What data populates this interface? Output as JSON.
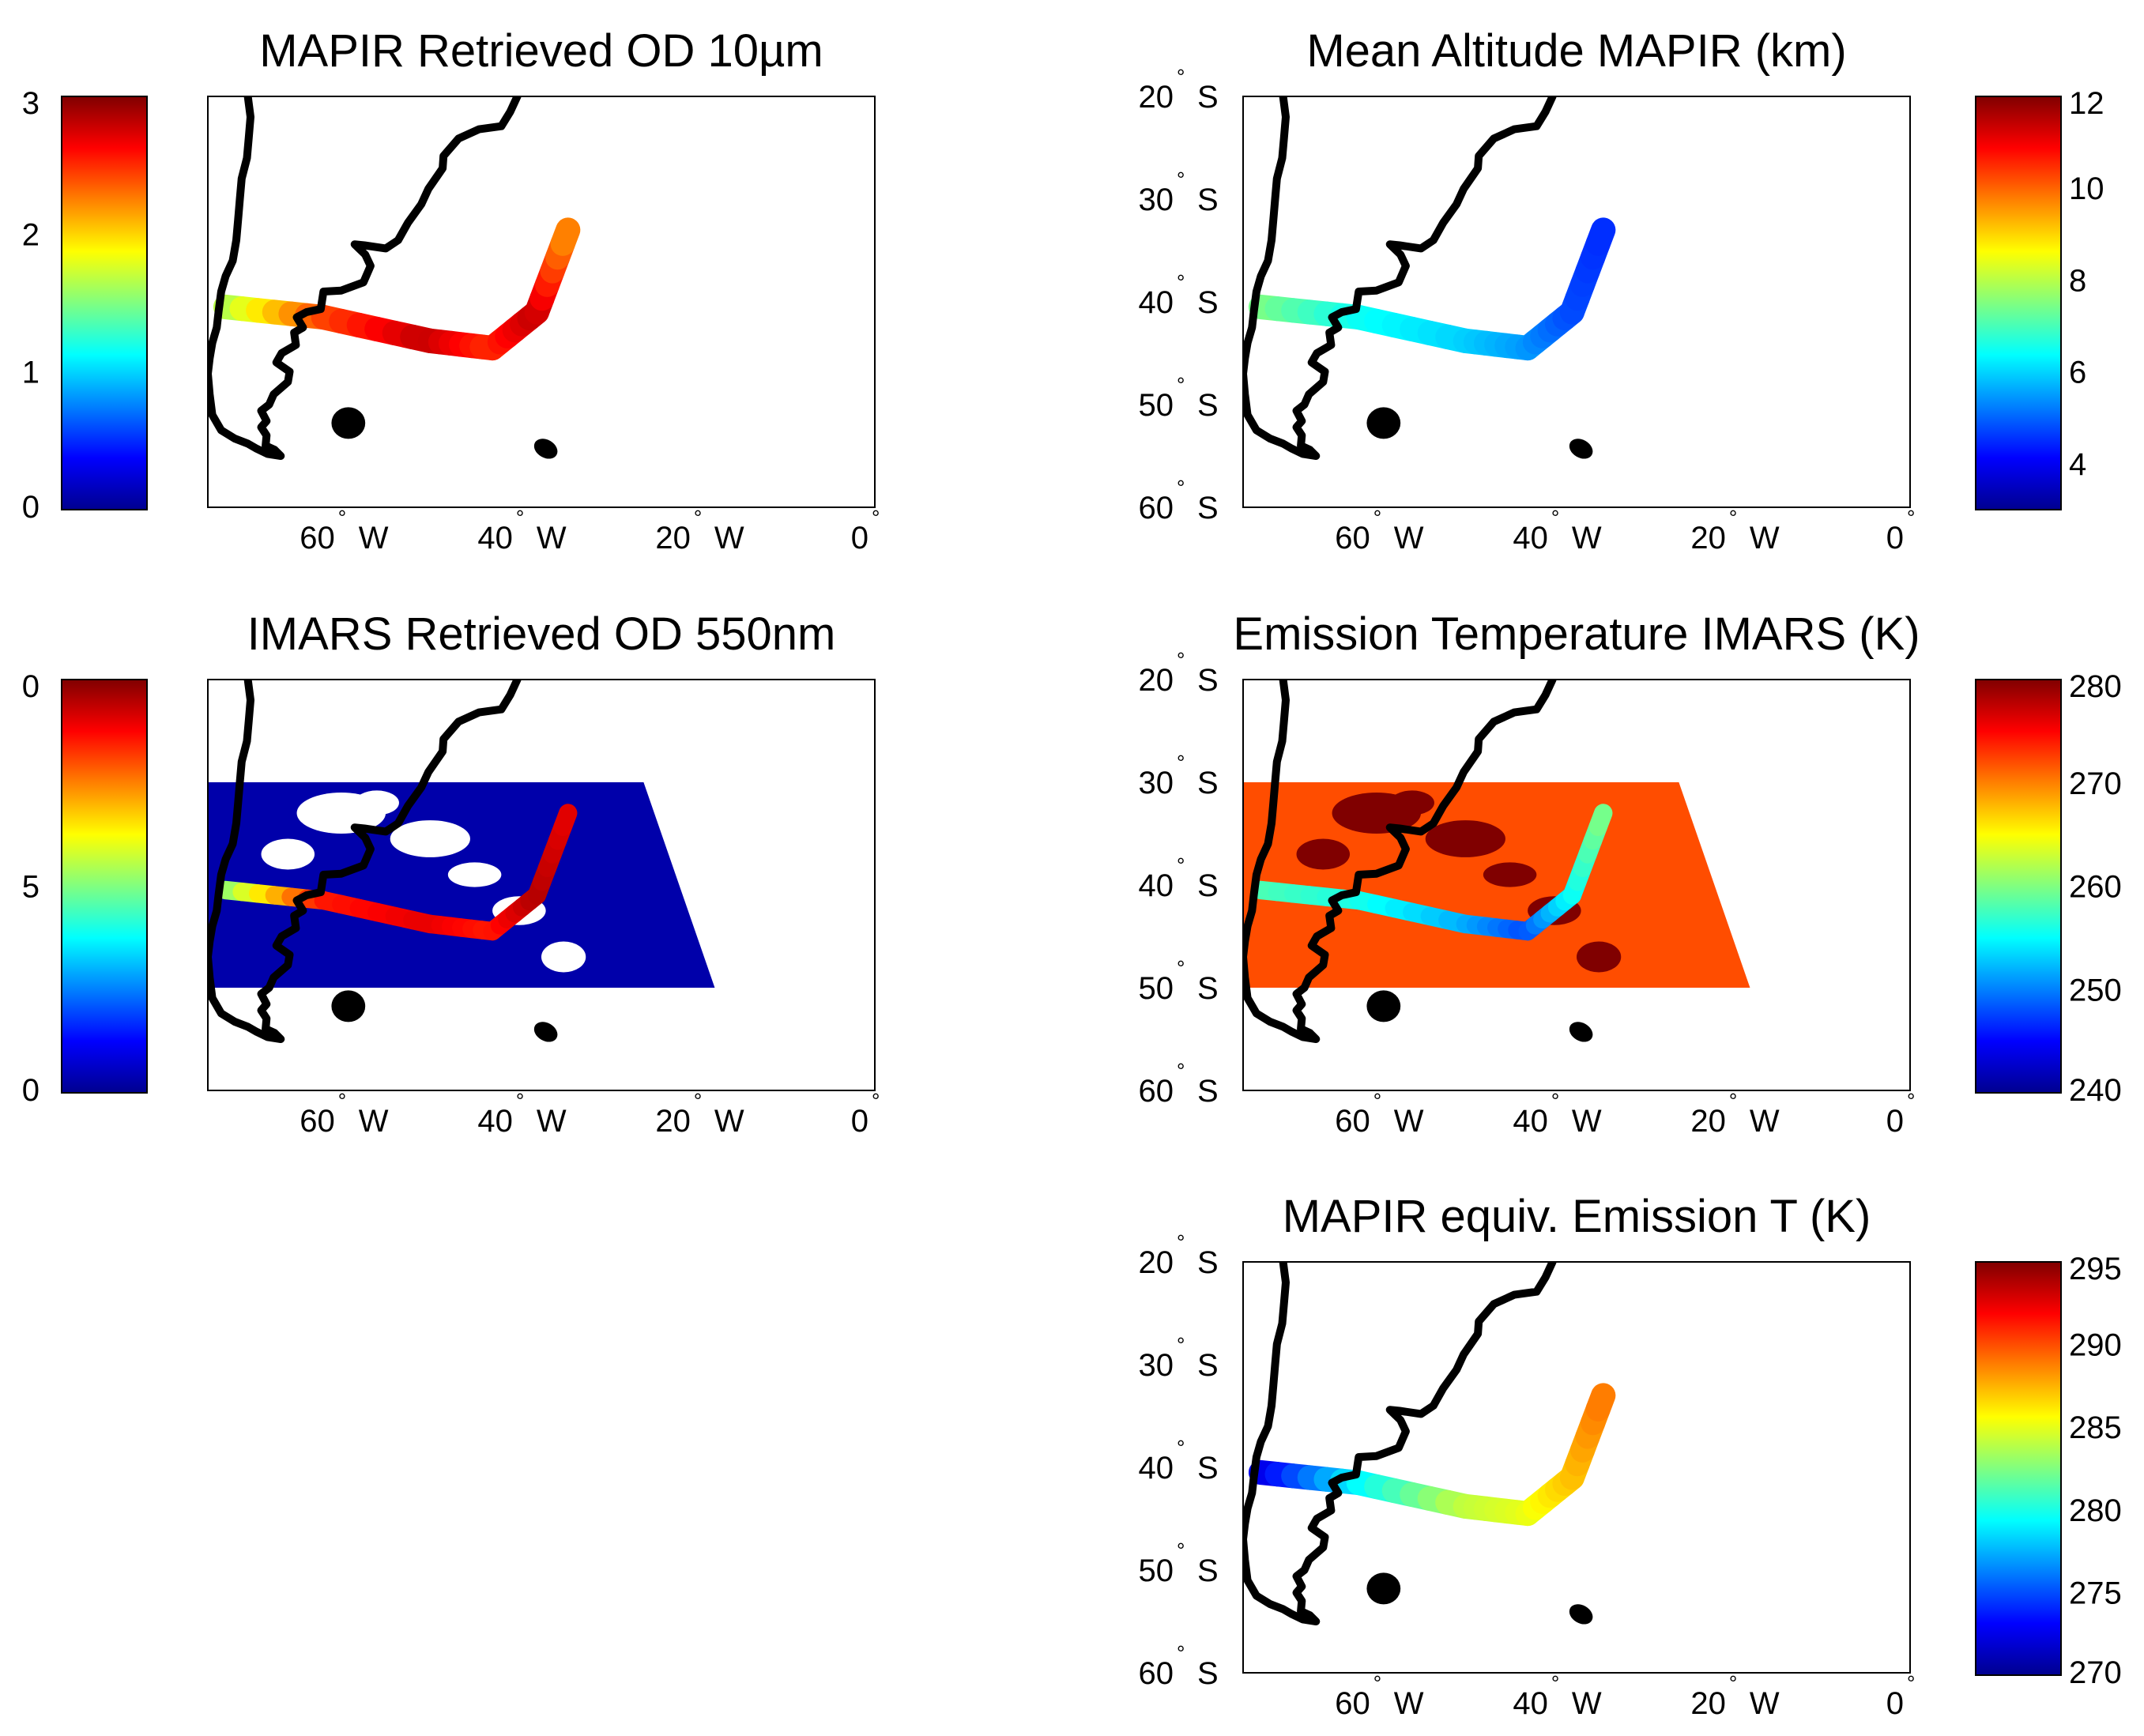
{
  "map": {
    "extent": {
      "lon": [
        -75,
        0
      ],
      "lat": [
        -60,
        -20
      ]
    },
    "lon_ticks": [
      {
        "lon": -60,
        "num": "60",
        "dir": "W"
      },
      {
        "lon": -40,
        "num": "40",
        "dir": "W"
      },
      {
        "lon": -20,
        "num": "20",
        "dir": "W"
      },
      {
        "lon": 0,
        "num": "0",
        "dir": ""
      }
    ],
    "lat_ticks": [
      {
        "lat": -20,
        "num": "20",
        "dir": "S"
      },
      {
        "lat": -30,
        "num": "30",
        "dir": "S"
      },
      {
        "lat": -40,
        "num": "40",
        "dir": "S"
      },
      {
        "lat": -50,
        "num": "50",
        "dir": "S"
      },
      {
        "lat": -60,
        "num": "60",
        "dir": "S"
      }
    ],
    "degree_symbol": "°",
    "coastline": [
      [
        -70.5,
        -20
      ],
      [
        -70.2,
        -22
      ],
      [
        -70.4,
        -24
      ],
      [
        -70.6,
        -26
      ],
      [
        -71.2,
        -28
      ],
      [
        -71.4,
        -30
      ],
      [
        -71.6,
        -32
      ],
      [
        -71.8,
        -34
      ],
      [
        -72.2,
        -36
      ],
      [
        -73.0,
        -37.5
      ],
      [
        -73.5,
        -39
      ],
      [
        -73.8,
        -41
      ],
      [
        -74.0,
        -42.5
      ],
      [
        -74.5,
        -44
      ],
      [
        -74.8,
        -45.5
      ],
      [
        -75.0,
        -47
      ],
      [
        -74.8,
        -49
      ],
      [
        -74.5,
        -51
      ],
      [
        -73.5,
        -52.5
      ],
      [
        -72.0,
        -53.3
      ],
      [
        -70.5,
        -53.8
      ],
      [
        -69.5,
        -54.3
      ],
      [
        -68.3,
        -54.8
      ],
      [
        -66.8,
        -55.0
      ],
      [
        -67.5,
        -54.4
      ],
      [
        -68.5,
        -54.0
      ],
      [
        -68.4,
        -53.0
      ],
      [
        -69.0,
        -52.2
      ],
      [
        -68.4,
        -51.6
      ],
      [
        -69.0,
        -50.6
      ],
      [
        -68.1,
        -50.0
      ],
      [
        -67.6,
        -49.0
      ],
      [
        -66.0,
        -47.8
      ],
      [
        -65.8,
        -46.8
      ],
      [
        -67.3,
        -45.9
      ],
      [
        -66.7,
        -45.0
      ],
      [
        -65.1,
        -44.2
      ],
      [
        -65.3,
        -43.0
      ],
      [
        -64.3,
        -42.5
      ],
      [
        -65.0,
        -41.5
      ],
      [
        -63.9,
        -41.0
      ],
      [
        -62.3,
        -40.7
      ],
      [
        -62.0,
        -39.0
      ],
      [
        -60.0,
        -38.9
      ],
      [
        -57.5,
        -38.1
      ],
      [
        -56.7,
        -36.5
      ],
      [
        -57.3,
        -35.4
      ],
      [
        -58.5,
        -34.4
      ],
      [
        -57.4,
        -34.5
      ],
      [
        -55.0,
        -34.8
      ],
      [
        -53.6,
        -34.0
      ],
      [
        -52.5,
        -32.3
      ],
      [
        -51.0,
        -30.5
      ],
      [
        -50.2,
        -29.0
      ],
      [
        -48.6,
        -27.0
      ],
      [
        -48.5,
        -25.8
      ],
      [
        -46.8,
        -24.1
      ],
      [
        -44.5,
        -23.2
      ],
      [
        -42.0,
        -22.9
      ],
      [
        -41.0,
        -21.5
      ],
      [
        -40.2,
        -20.0
      ]
    ],
    "islands": [
      {
        "lon": -59.2,
        "lat": -51.8,
        "rx": 1.9,
        "ry": 0.7,
        "rot": 0
      },
      {
        "lon": -37.0,
        "lat": -54.3,
        "rx": 1.4,
        "ry": 0.4,
        "rot": 30
      }
    ]
  },
  "panels": [
    {
      "id": "od10",
      "title": "MAPIR Retrieved OD 10µm",
      "colorbar": {
        "side": "left",
        "labels": [
          "3",
          "2",
          "1",
          "0"
        ]
      }
    },
    {
      "id": "alt",
      "title": "Mean Altitude MAPIR (km)",
      "colorbar": {
        "side": "right",
        "labels": [
          "12",
          "10",
          "8",
          "6",
          "4"
        ]
      }
    },
    {
      "id": "od550",
      "title": "IMARS Retrieved OD 550nm",
      "colorbar": {
        "side": "left",
        "labels": [
          "0",
          "5",
          "0"
        ]
      }
    },
    {
      "id": "emt",
      "title": "Emission Temperature IMARS (K)",
      "colorbar": {
        "side": "right",
        "labels": [
          "280",
          "270",
          "260",
          "250",
          "240"
        ]
      }
    },
    {
      "id": "eqt",
      "title": "MAPIR equiv. Emission T (K)",
      "colorbar": {
        "side": "right",
        "labels": [
          "295",
          "290",
          "285",
          "280",
          "275",
          "270"
        ]
      }
    }
  ],
  "colors": {
    "jet": [
      "#00008f",
      "#0000ff",
      "#0080ff",
      "#00ffff",
      "#80ff80",
      "#ffff00",
      "#ff8000",
      "#ff0000",
      "#800000"
    ],
    "coast": "#000000"
  },
  "chart_data": [
    {
      "type": "heatmap",
      "panel": "od10",
      "title": "MAPIR Retrieved OD 10µm",
      "colorbar_range": [
        0,
        3
      ],
      "colorbar_ticks": [
        0,
        1,
        2,
        3
      ],
      "lon_ticks": [
        -60,
        -40,
        -20,
        0
      ],
      "plume": {
        "path": [
          [
            -73,
            -40.5
          ],
          [
            -62,
            -41.5
          ],
          [
            -50,
            -43.8
          ],
          [
            -43,
            -44.5
          ],
          [
            -38,
            -41
          ],
          [
            -34.5,
            -33
          ]
        ],
        "values": [
          1.6,
          2.4,
          2.8,
          2.5,
          2.8,
          2.2
        ]
      }
    },
    {
      "type": "heatmap",
      "panel": "alt",
      "title": "Mean Altitude MAPIR (km)",
      "colorbar_range": [
        3,
        12
      ],
      "colorbar_ticks": [
        4,
        6,
        8,
        10,
        12
      ],
      "lon_ticks": [
        -60,
        -40,
        -20,
        0
      ],
      "lat_ticks": [
        -20,
        -30,
        -40,
        -50,
        -60
      ],
      "plume": {
        "path": [
          [
            -73,
            -40.5
          ],
          [
            -62,
            -41.5
          ],
          [
            -50,
            -43.8
          ],
          [
            -43,
            -44.5
          ],
          [
            -38,
            -41
          ],
          [
            -34.5,
            -33
          ]
        ],
        "values": [
          7.5,
          6.5,
          6.0,
          5.5,
          4.8,
          4.5
        ]
      }
    },
    {
      "type": "heatmap",
      "panel": "od550",
      "title": "IMARS Retrieved OD 550nm",
      "colorbar_range": [
        0,
        10
      ],
      "colorbar_tick_labels": [
        "0",
        "5",
        "0"
      ],
      "lon_ticks": [
        -60,
        -40,
        -20,
        0
      ],
      "swath": {
        "lon": [
          -75,
          -26
        ],
        "lat": [
          -50,
          -30
        ],
        "background_value": 0.3
      },
      "plume": {
        "path": [
          [
            -73,
            -40.5
          ],
          [
            -62,
            -41.5
          ],
          [
            -50,
            -43.8
          ],
          [
            -43,
            -44.5
          ],
          [
            -38,
            -41
          ],
          [
            -34.5,
            -33
          ]
        ],
        "values": [
          5.0,
          8.5,
          9.0,
          8.5,
          9.5,
          9.0
        ]
      }
    },
    {
      "type": "heatmap",
      "panel": "emt",
      "title": "Emission Temperature IMARS (K)",
      "colorbar_range": [
        240,
        280
      ],
      "colorbar_ticks": [
        240,
        250,
        260,
        270,
        280
      ],
      "lon_ticks": [
        -60,
        -40,
        -20,
        0
      ],
      "lat_ticks": [
        -20,
        -30,
        -40,
        -50,
        -60
      ],
      "swath": {
        "lon": [
          -75,
          -26
        ],
        "lat": [
          -50,
          -30
        ],
        "background_value": 272
      },
      "plume": {
        "path": [
          [
            -73,
            -40.5
          ],
          [
            -62,
            -41.5
          ],
          [
            -50,
            -43.8
          ],
          [
            -43,
            -44.5
          ],
          [
            -38,
            -41
          ],
          [
            -34.5,
            -33
          ]
        ],
        "values": [
          258,
          256,
          252,
          248,
          255,
          260
        ]
      }
    },
    {
      "type": "heatmap",
      "panel": "eqt",
      "title": "MAPIR equiv. Emission T (K)",
      "colorbar_range": [
        270,
        295
      ],
      "colorbar_ticks": [
        270,
        275,
        280,
        285,
        290,
        295
      ],
      "lon_ticks": [
        -60,
        -40,
        -20,
        0
      ],
      "lat_ticks": [
        -20,
        -30,
        -40,
        -50,
        -60
      ],
      "plume": {
        "path": [
          [
            -73,
            -40.5
          ],
          [
            -62,
            -41.5
          ],
          [
            -50,
            -43.8
          ],
          [
            -43,
            -44.5
          ],
          [
            -38,
            -41
          ],
          [
            -34.5,
            -33
          ]
        ],
        "values": [
          272,
          279,
          284,
          285,
          287,
          289
        ]
      }
    }
  ]
}
